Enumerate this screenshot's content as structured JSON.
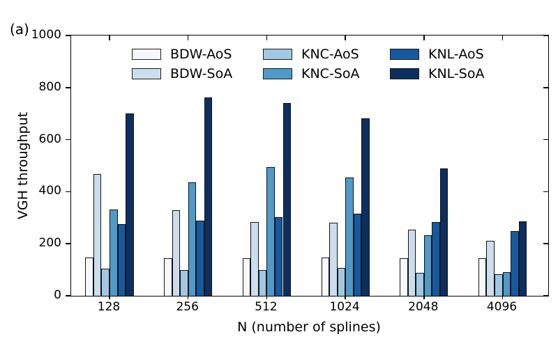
{
  "figure_label": "(a)",
  "chart_data": {
    "type": "bar",
    "title": "",
    "xlabel": "N (number of splines)",
    "ylabel": "VGH throughput",
    "ylim": [
      0,
      1000
    ],
    "yticks": [
      0,
      200,
      400,
      600,
      800,
      1000
    ],
    "categories": [
      "128",
      "256",
      "512",
      "1024",
      "2048",
      "4096"
    ],
    "grid": false,
    "legend": {
      "position": "upper-center-inside",
      "columns": 3,
      "rows": 2,
      "frame": false,
      "order": [
        "BDW-AoS",
        "BDW-SoA",
        "KNC-AoS",
        "KNC-SoA",
        "KNL-AoS",
        "KNL-SoA"
      ]
    },
    "bar_edge_color": "#131313",
    "series": [
      {
        "name": "BDW-AoS",
        "color": "#f5f9fe",
        "values": [
          146,
          145,
          145,
          148,
          145,
          144
        ]
      },
      {
        "name": "BDW-SoA",
        "color": "#ccdded",
        "values": [
          467,
          330,
          284,
          281,
          255,
          211
        ]
      },
      {
        "name": "KNC-AoS",
        "color": "#a0c8e2",
        "values": [
          105,
          100,
          100,
          106,
          88,
          83
        ]
      },
      {
        "name": "KNC-SoA",
        "color": "#4f9ac8",
        "values": [
          332,
          435,
          496,
          456,
          234,
          90
        ]
      },
      {
        "name": "KNL-AoS",
        "color": "#17599f",
        "values": [
          276,
          290,
          302,
          316,
          284,
          248
        ]
      },
      {
        "name": "KNL-SoA",
        "color": "#0d2f5f",
        "values": [
          701,
          762,
          741,
          683,
          490,
          287
        ]
      }
    ]
  }
}
